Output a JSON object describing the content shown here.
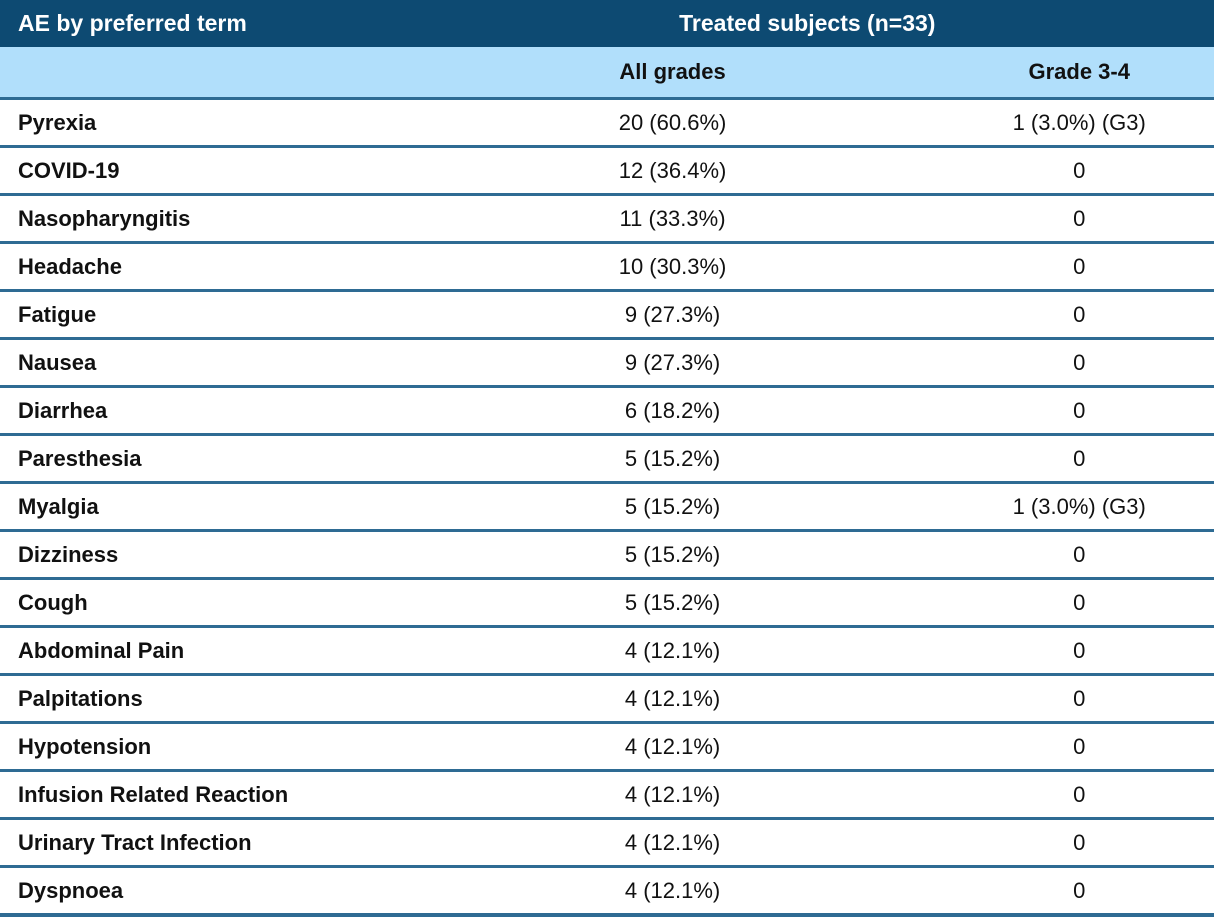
{
  "table": {
    "header": {
      "title": "AE by preferred term",
      "group": "Treated subjects (n=33)",
      "all_grades": "All grades",
      "grade_3_4": "Grade 3-4"
    },
    "rows": [
      {
        "term": "Pyrexia",
        "all_grades": "20 (60.6%)",
        "grade_3_4": "1 (3.0%) (G3)"
      },
      {
        "term": "COVID-19",
        "all_grades": "12 (36.4%)",
        "grade_3_4": "0"
      },
      {
        "term": "Nasopharyngitis",
        "all_grades": "11 (33.3%)",
        "grade_3_4": "0"
      },
      {
        "term": "Headache",
        "all_grades": "10 (30.3%)",
        "grade_3_4": "0"
      },
      {
        "term": "Fatigue",
        "all_grades": "9 (27.3%)",
        "grade_3_4": "0"
      },
      {
        "term": "Nausea",
        "all_grades": "9 (27.3%)",
        "grade_3_4": "0"
      },
      {
        "term": "Diarrhea",
        "all_grades": "6 (18.2%)",
        "grade_3_4": "0"
      },
      {
        "term": "Paresthesia",
        "all_grades": "5 (15.2%)",
        "grade_3_4": "0"
      },
      {
        "term": "Myalgia",
        "all_grades": "5 (15.2%)",
        "grade_3_4": "1 (3.0%) (G3)"
      },
      {
        "term": "Dizziness",
        "all_grades": "5 (15.2%)",
        "grade_3_4": "0"
      },
      {
        "term": "Cough",
        "all_grades": "5 (15.2%)",
        "grade_3_4": "0"
      },
      {
        "term": "Abdominal Pain",
        "all_grades": "4 (12.1%)",
        "grade_3_4": "0"
      },
      {
        "term": "Palpitations",
        "all_grades": "4 (12.1%)",
        "grade_3_4": "0"
      },
      {
        "term": "Hypotension",
        "all_grades": "4 (12.1%)",
        "grade_3_4": "0"
      },
      {
        "term": "Infusion Related Reaction",
        "all_grades": "4 (12.1%)",
        "grade_3_4": "0"
      },
      {
        "term": "Urinary Tract Infection",
        "all_grades": "4 (12.1%)",
        "grade_3_4": "0"
      },
      {
        "term": "Dyspnoea",
        "all_grades": "4 (12.1%)",
        "grade_3_4": "0"
      }
    ],
    "colors": {
      "header_bg": "#0d4a72",
      "subheader_bg": "#b1dffb",
      "row_divider": "#2e6b93",
      "header_text": "#ffffff",
      "body_text": "#111111"
    }
  },
  "chart_data": {
    "type": "table",
    "title": "AE by preferred term",
    "group_header": "Treated subjects (n=33)",
    "columns": [
      "AE by preferred term",
      "All grades",
      "Grade 3-4"
    ],
    "rows": [
      [
        "Pyrexia",
        "20 (60.6%)",
        "1 (3.0%) (G3)"
      ],
      [
        "COVID-19",
        "12 (36.4%)",
        "0"
      ],
      [
        "Nasopharyngitis",
        "11 (33.3%)",
        "0"
      ],
      [
        "Headache",
        "10 (30.3%)",
        "0"
      ],
      [
        "Fatigue",
        "9 (27.3%)",
        "0"
      ],
      [
        "Nausea",
        "9 (27.3%)",
        "0"
      ],
      [
        "Diarrhea",
        "6 (18.2%)",
        "0"
      ],
      [
        "Paresthesia",
        "5 (15.2%)",
        "0"
      ],
      [
        "Myalgia",
        "5 (15.2%)",
        "1 (3.0%) (G3)"
      ],
      [
        "Dizziness",
        "5 (15.2%)",
        "0"
      ],
      [
        "Cough",
        "5 (15.2%)",
        "0"
      ],
      [
        "Abdominal Pain",
        "4 (12.1%)",
        "0"
      ],
      [
        "Palpitations",
        "4 (12.1%)",
        "0"
      ],
      [
        "Hypotension",
        "4 (12.1%)",
        "0"
      ],
      [
        "Infusion Related Reaction",
        "4 (12.1%)",
        "0"
      ],
      [
        "Urinary Tract Infection",
        "4 (12.1%)",
        "0"
      ],
      [
        "Dyspnoea",
        "4 (12.1%)",
        "0"
      ]
    ]
  }
}
